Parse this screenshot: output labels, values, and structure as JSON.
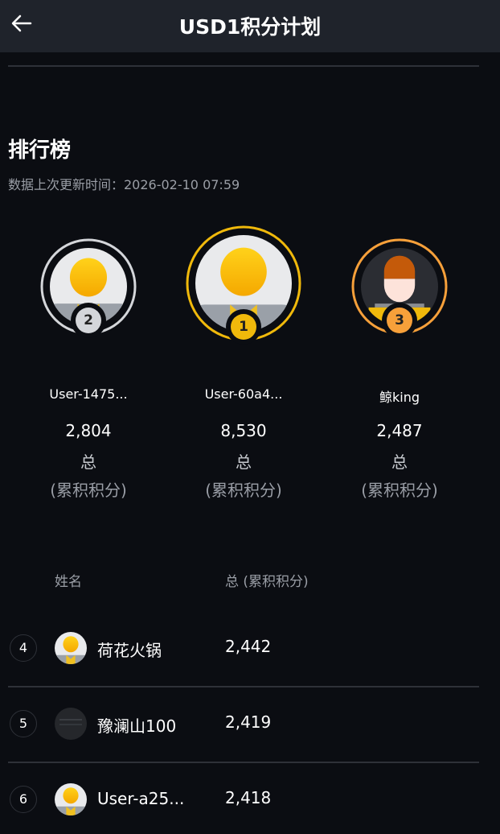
{
  "header": {
    "title": "USD1积分计划",
    "back_icon": "arrow-left-icon"
  },
  "leaderboard": {
    "title": "排行榜",
    "updated": "数据上次更新时间：2026-02-10 07:59"
  },
  "podium": [
    {
      "rank": "2",
      "name": "User-1475...",
      "points": "2,804",
      "total_label": "总",
      "cumulative_label": "(累积积分)",
      "ring_color": "#d4d6da",
      "avatar": "default-yellow"
    },
    {
      "rank": "1",
      "name": "User-60a4...",
      "points": "8,530",
      "total_label": "总",
      "cumulative_label": "(累积积分)",
      "ring_color": "#f0b90b",
      "avatar": "default-yellow"
    },
    {
      "rank": "3",
      "name": "鲸king",
      "points": "2,487",
      "total_label": "总",
      "cumulative_label": "(累积积分)",
      "ring_color": "#f7a03a",
      "avatar": "pixel-person"
    }
  ],
  "table": {
    "headers": {
      "name": "姓名",
      "total": "总 (累积积分)"
    },
    "rows": [
      {
        "rank": "4",
        "name": "荷花火锅",
        "points": "2,442",
        "avatar": "default-yellow"
      },
      {
        "rank": "5",
        "name": "豫澜山100",
        "points": "2,419",
        "avatar": "dark-photo"
      },
      {
        "rank": "6",
        "name": "User-a25...",
        "points": "2,418",
        "avatar": "default-yellow"
      }
    ]
  }
}
